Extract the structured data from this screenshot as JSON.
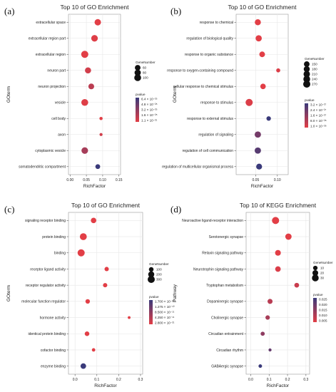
{
  "chart_data": [
    {
      "panel": "(a)",
      "type": "scatter",
      "title": "Top 10 of GO Enrichment",
      "xlabel": "RichFactor",
      "ylabel": "GOterm",
      "xlim": [
        -0.005,
        0.155
      ],
      "xticks": [
        "0.00",
        "0.05",
        "0.10",
        "0.15"
      ],
      "xtick_values": [
        0,
        0.05,
        0.1,
        0.15
      ],
      "categories": [
        "extracellular space",
        "extracellular region part",
        "extracellular region",
        "neuron part",
        "neuron projection",
        "vesicle",
        "cell body",
        "axon",
        "cytoplasmic vesicle",
        "somatodendritic compartment"
      ],
      "richfactor": [
        0.085,
        0.075,
        0.045,
        0.055,
        0.065,
        0.045,
        0.095,
        0.095,
        0.045,
        0.085
      ],
      "gene_number": [
        85,
        90,
        110,
        75,
        65,
        100,
        12,
        10,
        90,
        40
      ],
      "pvalue": [
        1e-26,
        2e-26,
        1e-26,
        5e-26,
        1e-25,
        2e-26,
        1e-26,
        5e-26,
        1.5e-25,
        4e-25
      ],
      "size_legend": {
        "title": "GeneNumber",
        "labels": [
          "60",
          "80",
          "100"
        ],
        "values": [
          60,
          80,
          100
        ]
      },
      "color_legend": {
        "title": "pvalue",
        "labels": [
          "6.4 × 10⁻²⁵",
          "4.8 × 10⁻²⁵",
          "3.2 × 10⁻²⁵",
          "1.6 × 10⁻²⁵",
          "1.1 × 10⁻²¹"
        ],
        "range": [
          1.1e-21,
          6.4e-25
        ]
      },
      "grid": true
    },
    {
      "panel": "(b)",
      "type": "scatter",
      "title": "Top 10 of GO Enrichment",
      "xlabel": "RichFactor",
      "ylabel": "GOterm",
      "xlim": [
        0.005,
        0.125
      ],
      "xticks": [
        "0.05",
        "0.10"
      ],
      "xtick_values": [
        0.05,
        0.1
      ],
      "categories": [
        "response to chemical",
        "regulation of biological quality",
        "response to organic substance",
        "response to oxygen-containing compound",
        "cellular response to chemical stimulus",
        "response to stimulus",
        "response to external stimulus",
        "regulation of signaling",
        "regulation of cell communication",
        "regulation of multicellular organismal process"
      ],
      "richfactor": [
        0.055,
        0.057,
        0.065,
        0.102,
        0.067,
        0.035,
        0.08,
        0.055,
        0.055,
        0.058
      ],
      "gene_number": [
        180,
        190,
        150,
        60,
        140,
        270,
        80,
        200,
        200,
        170
      ],
      "pvalue": [
        1e-28,
        1e-28,
        1e-28,
        2e-28,
        1e-28,
        2e-28,
        2.4e-27,
        1.6e-27,
        2e-27,
        2.4e-27
      ],
      "size_legend": {
        "title": "GeneNumber",
        "labels": [
          "150",
          "180",
          "210",
          "240",
          "270"
        ],
        "values": [
          150,
          180,
          210,
          240,
          270
        ]
      },
      "color_legend": {
        "title": "pvalue",
        "labels": [
          "3.2 × 10⁻²⁷",
          "2.4 × 10⁻²⁷",
          "1.6 × 10⁻²⁷",
          "8.0 × 10⁻²⁸",
          "1.0 × 10⁻²⁸"
        ],
        "range": [
          1e-28,
          3.2e-27
        ]
      },
      "grid": true
    },
    {
      "panel": "(c)",
      "type": "scatter",
      "title": "Top 10 of GO Enrichment",
      "xlabel": "RichFactor",
      "ylabel": "GOterm",
      "xlim": [
        -0.03,
        0.31
      ],
      "xticks": [
        "0.0",
        "0.1",
        "0.2",
        "0.3"
      ],
      "xtick_values": [
        0,
        0.1,
        0.2,
        0.3
      ],
      "categories": [
        "signaling receptor binding",
        "protein binding",
        "binding",
        "receptor ligand activity",
        "receptor regulator activity",
        "molecular function regulator",
        "hormone activity",
        "identical protein binding",
        "cofactor binding",
        "enzyme binding"
      ],
      "richfactor": [
        0.085,
        0.038,
        0.028,
        0.145,
        0.138,
        0.058,
        0.248,
        0.055,
        0.085,
        0.038
      ],
      "gene_number": [
        150,
        280,
        300,
        80,
        80,
        90,
        20,
        100,
        40,
        160
      ],
      "pvalue": [
        2.8e-21,
        2.8e-21,
        2.8e-21,
        2.8e-21,
        2.8e-21,
        2.8e-21,
        2.8e-21,
        2.8e-21,
        2.8e-21,
        1.7e-10
      ],
      "size_legend": {
        "title": "GeneNumber",
        "labels": [
          "100",
          "200",
          "300"
        ],
        "values": [
          100,
          200,
          300
        ]
      },
      "color_legend": {
        "title": "pvalue",
        "labels": [
          "1.700 × 10⁻¹⁰",
          "1.275 × 10⁻¹⁰",
          "8.500 × 10⁻¹¹",
          "4.250 × 10⁻¹¹",
          "2.800 × 10⁻²¹"
        ],
        "range": [
          2.8e-21,
          1.7e-10
        ]
      },
      "grid": true
    },
    {
      "panel": "(d)",
      "type": "scatter",
      "title": "Top 10 of KEGG Enrichment",
      "xlabel": "RichFactor",
      "ylabel": "Pathway",
      "xlim": [
        -0.025,
        0.32
      ],
      "xticks": [
        "0.0",
        "0.1",
        "0.2",
        "0.3"
      ],
      "xtick_values": [
        0,
        0.1,
        0.2,
        0.3
      ],
      "categories": [
        "Neuroactive ligand-receptor interaction",
        "Serotonergic synapse",
        "Relaxin signaling pathway",
        "Neurotrophin signaling pathway",
        "Tryptophan metabolism",
        "Dopaminergic synapse",
        "Cholinergic synapse",
        "Circadian entrainment",
        "Circadian rhythm",
        "GABAergic synapse"
      ],
      "richfactor": [
        0.135,
        0.205,
        0.148,
        0.148,
        0.25,
        0.105,
        0.092,
        0.065,
        0.105,
        0.052
      ],
      "gene_number": [
        34,
        25,
        20,
        18,
        12,
        14,
        10,
        8,
        3,
        5
      ],
      "pvalue": [
        0.005,
        0.005,
        0.005,
        0.006,
        0.008,
        0.01,
        0.012,
        0.015,
        0.02,
        0.025
      ],
      "size_legend": {
        "title": "GeneNumber",
        "labels": [
          "10",
          "20",
          "30"
        ],
        "values": [
          10,
          20,
          30
        ]
      },
      "color_legend": {
        "title": "pvalue",
        "labels": [
          "0.025",
          "0.020",
          "0.015",
          "0.010",
          "0.005"
        ],
        "range": [
          0.005,
          0.025
        ]
      },
      "grid": true
    }
  ]
}
